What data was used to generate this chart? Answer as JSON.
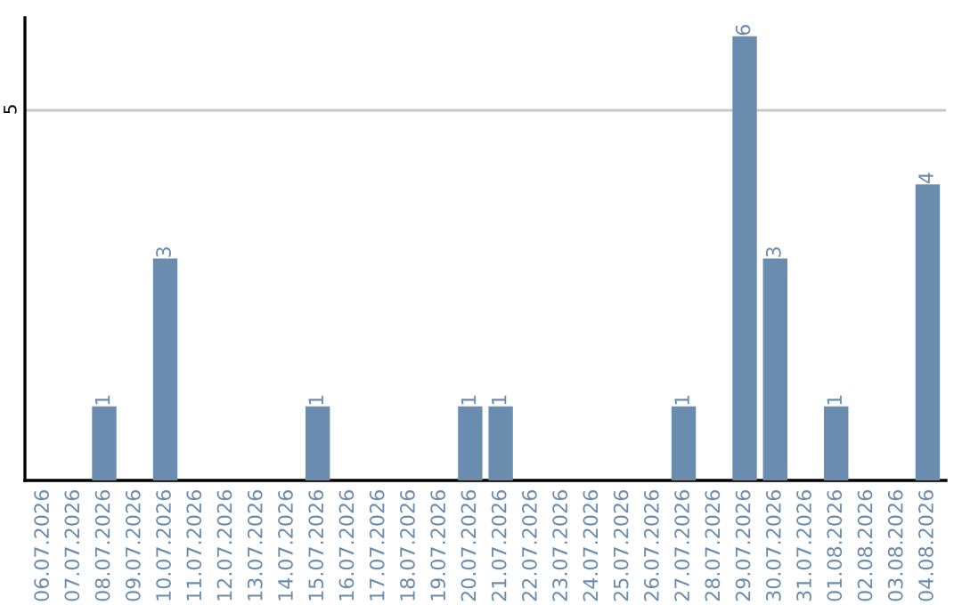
{
  "chart_data": {
    "type": "bar",
    "categories": [
      "06.07.2026",
      "07.07.2026",
      "08.07.2026",
      "09.07.2026",
      "10.07.2026",
      "11.07.2026",
      "12.07.2026",
      "13.07.2026",
      "14.07.2026",
      "15.07.2026",
      "16.07.2026",
      "17.07.2026",
      "18.07.2026",
      "19.07.2026",
      "20.07.2026",
      "21.07.2026",
      "22.07.2026",
      "23.07.2026",
      "24.07.2026",
      "25.07.2026",
      "26.07.2026",
      "27.07.2026",
      "28.07.2026",
      "29.07.2026",
      "30.07.2026",
      "31.07.2026",
      "01.08.2026",
      "02.08.2026",
      "03.08.2026",
      "04.08.2026"
    ],
    "values": [
      0,
      0,
      1,
      0,
      3,
      0,
      0,
      0,
      0,
      1,
      0,
      0,
      0,
      0,
      1,
      1,
      0,
      0,
      0,
      0,
      0,
      1,
      0,
      6,
      3,
      0,
      1,
      0,
      0,
      4
    ],
    "value_labels": [
      null,
      null,
      "1",
      null,
      "3",
      null,
      null,
      null,
      null,
      "1",
      null,
      null,
      null,
      null,
      "1",
      "1",
      null,
      null,
      null,
      null,
      null,
      "1",
      null,
      "6",
      "3",
      null,
      "1",
      null,
      null,
      "4"
    ],
    "color": "#6a8caf",
    "ylim": [
      0,
      6.25
    ],
    "yticks": [
      5
    ],
    "grid": "y"
  }
}
